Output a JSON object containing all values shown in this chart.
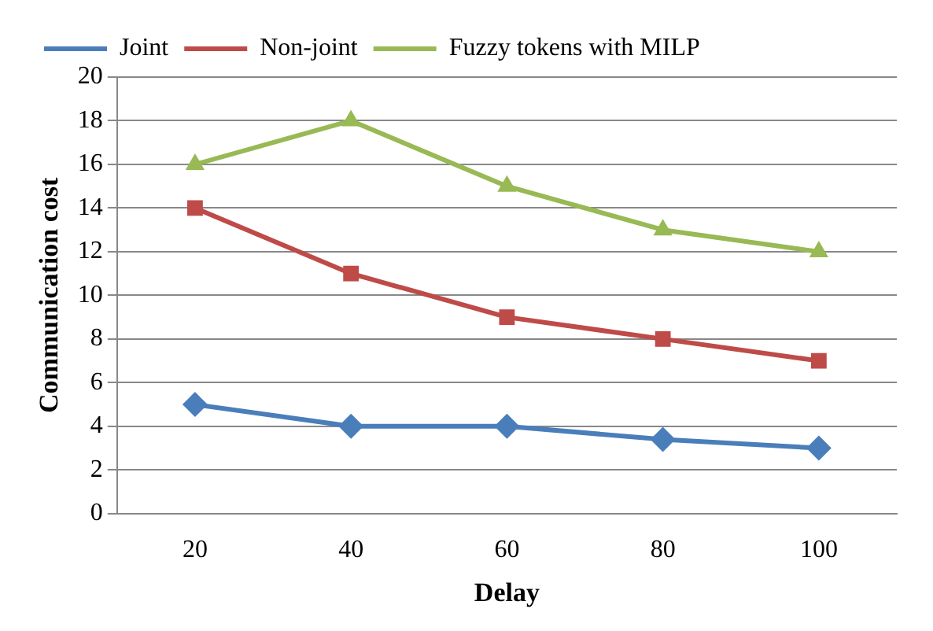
{
  "chart_data": {
    "type": "line",
    "xlabel": "Delay",
    "ylabel": "Communication cost",
    "categories": [
      "20",
      "40",
      "60",
      "80",
      "100"
    ],
    "series": [
      {
        "name": "Joint",
        "color": "#4a7ebb",
        "marker": "diamond",
        "values": [
          5,
          4,
          4,
          3.4,
          3
        ]
      },
      {
        "name": "Non-joint",
        "color": "#be4b48",
        "marker": "square",
        "values": [
          14,
          11,
          9,
          8,
          7
        ]
      },
      {
        "name": "Fuzzy tokens with MILP",
        "color": "#98b954",
        "marker": "triangle",
        "values": [
          16,
          18,
          15,
          13,
          12
        ]
      }
    ],
    "ylim": [
      0,
      20
    ],
    "yticks": [
      0,
      2,
      4,
      6,
      8,
      10,
      12,
      14,
      16,
      18,
      20
    ],
    "grid": "y",
    "legend": "top"
  }
}
